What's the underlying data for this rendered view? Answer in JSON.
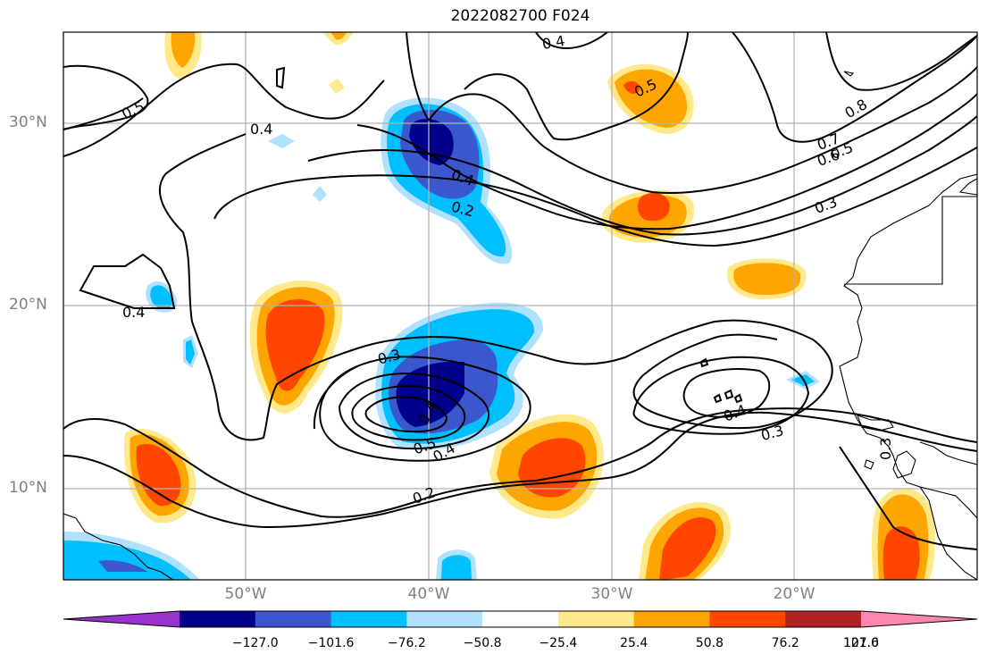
{
  "title": "2022082700 F024",
  "axes": {
    "lat_labels": [
      "30°N",
      "20°N",
      "10°N"
    ],
    "lon_labels": [
      "50°W",
      "40°W",
      "30°W",
      "20°W"
    ]
  },
  "contour_labels": [
    "0.4",
    "0.5",
    "0.5",
    "0.4",
    "0.8",
    "0.7",
    "0.6",
    "0.5",
    "0.4",
    "0.2",
    "0.3",
    "0.4",
    "0.3",
    "0.4",
    "0.5",
    "0.4",
    "0.2",
    "0.4",
    "0.3",
    "0.3"
  ],
  "colorbar": {
    "ticks": [
      "−127.0",
      "−101.6",
      "−76.2",
      "−50.8",
      "−25.4",
      "25.4",
      "50.8",
      "76.2",
      "101.6",
      "127.0"
    ],
    "colors": [
      "#9932cc",
      "#00008b",
      "#3a57cd",
      "#00bfff",
      "#b0e2ff",
      "#ffffff",
      "#ffe98a",
      "#ffa500",
      "#ff4500",
      "#b22222",
      "#ff86b0"
    ]
  },
  "colors": {
    "frame": "#000000",
    "grid": "#b3b3b3"
  }
}
